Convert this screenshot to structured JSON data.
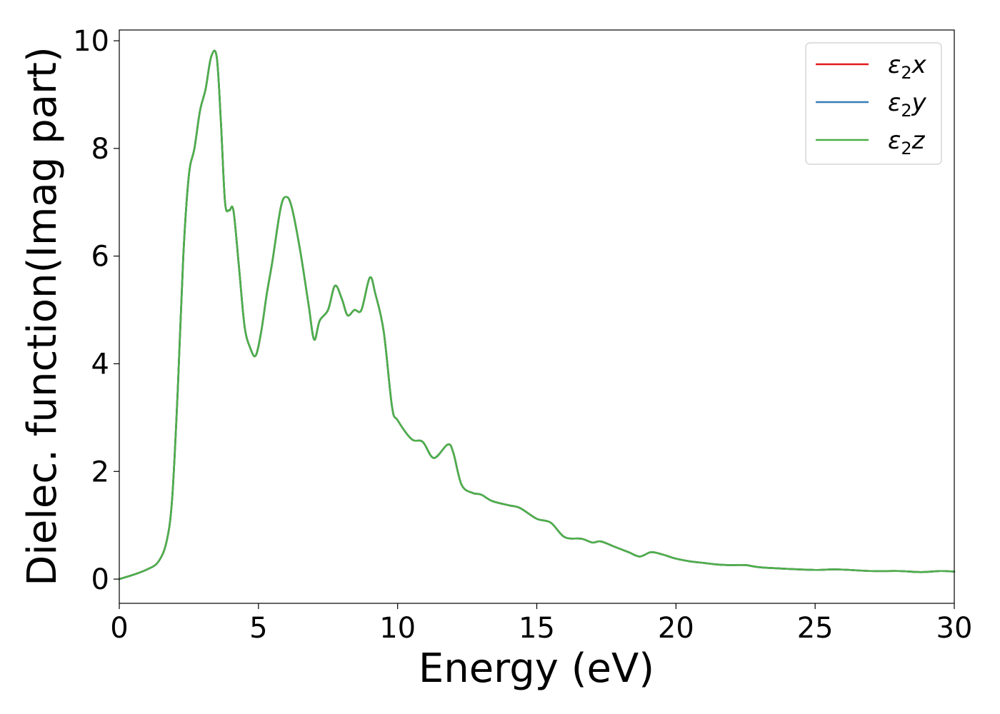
{
  "chart_data": {
    "type": "line",
    "title": "",
    "xlabel": "Energy (eV)",
    "ylabel": "Dielec. function(Imag part)",
    "xlim": [
      0,
      30
    ],
    "ylim": [
      -0.45,
      10.2
    ],
    "xticks": [
      0,
      5,
      10,
      15,
      20,
      25,
      30
    ],
    "yticks": [
      0,
      2,
      4,
      6,
      8,
      10
    ],
    "grid": false,
    "legend_position": "top-right",
    "x": [
      0,
      0.5,
      1.0,
      1.4,
      1.7,
      1.9,
      2.1,
      2.3,
      2.5,
      2.7,
      2.9,
      3.1,
      3.3,
      3.5,
      3.65,
      3.8,
      3.95,
      4.1,
      4.3,
      4.5,
      4.7,
      4.9,
      5.1,
      5.3,
      5.5,
      5.8,
      6.0,
      6.2,
      6.5,
      6.8,
      7.0,
      7.2,
      7.5,
      7.75,
      8.0,
      8.2,
      8.45,
      8.7,
      9.0,
      9.2,
      9.5,
      9.8,
      10.0,
      10.5,
      10.9,
      11.3,
      11.8,
      12.0,
      12.3,
      12.7,
      13.0,
      13.4,
      14.0,
      14.4,
      15.0,
      15.5,
      16.0,
      16.6,
      17.0,
      17.3,
      17.8,
      18.3,
      18.7,
      19.1,
      19.5,
      20.0,
      20.5,
      21.0,
      21.5,
      22.0,
      22.5,
      23.0,
      24.0,
      25.0,
      25.8,
      27.0,
      28.0,
      28.8,
      29.5,
      30.0
    ],
    "series": [
      {
        "name": "x",
        "color": "#e41a1c",
        "values": [
          0.0,
          0.08,
          0.18,
          0.32,
          0.7,
          1.5,
          3.5,
          6.0,
          7.5,
          8.0,
          8.7,
          9.1,
          9.7,
          9.7,
          8.5,
          7.0,
          6.85,
          6.85,
          5.8,
          4.7,
          4.3,
          4.15,
          4.6,
          5.3,
          5.9,
          6.9,
          7.1,
          6.9,
          6.1,
          5.1,
          4.45,
          4.8,
          5.0,
          5.45,
          5.2,
          4.9,
          5.0,
          5.0,
          5.6,
          5.3,
          4.6,
          3.2,
          2.95,
          2.6,
          2.55,
          2.25,
          2.5,
          2.35,
          1.75,
          1.6,
          1.57,
          1.45,
          1.37,
          1.32,
          1.12,
          1.05,
          0.78,
          0.75,
          0.68,
          0.7,
          0.6,
          0.5,
          0.42,
          0.5,
          0.46,
          0.38,
          0.33,
          0.3,
          0.27,
          0.26,
          0.26,
          0.22,
          0.19,
          0.17,
          0.18,
          0.15,
          0.15,
          0.13,
          0.15,
          0.14
        ]
      },
      {
        "name": "y",
        "color": "#377eb8",
        "values": [
          0.0,
          0.08,
          0.18,
          0.32,
          0.7,
          1.5,
          3.5,
          6.0,
          7.5,
          8.0,
          8.7,
          9.1,
          9.7,
          9.7,
          8.5,
          7.0,
          6.85,
          6.85,
          5.8,
          4.7,
          4.3,
          4.15,
          4.6,
          5.3,
          5.9,
          6.9,
          7.1,
          6.9,
          6.1,
          5.1,
          4.45,
          4.8,
          5.0,
          5.45,
          5.2,
          4.9,
          5.0,
          5.0,
          5.6,
          5.3,
          4.6,
          3.2,
          2.95,
          2.6,
          2.55,
          2.25,
          2.5,
          2.35,
          1.75,
          1.6,
          1.57,
          1.45,
          1.37,
          1.32,
          1.12,
          1.05,
          0.78,
          0.75,
          0.68,
          0.7,
          0.6,
          0.5,
          0.42,
          0.5,
          0.46,
          0.38,
          0.33,
          0.3,
          0.27,
          0.26,
          0.26,
          0.22,
          0.19,
          0.17,
          0.18,
          0.15,
          0.15,
          0.13,
          0.15,
          0.14
        ]
      },
      {
        "name": "z",
        "color": "#4daf4a",
        "values": [
          0.0,
          0.08,
          0.18,
          0.32,
          0.7,
          1.5,
          3.5,
          6.0,
          7.5,
          8.0,
          8.7,
          9.1,
          9.7,
          9.7,
          8.5,
          7.0,
          6.85,
          6.85,
          5.8,
          4.7,
          4.3,
          4.15,
          4.6,
          5.3,
          5.9,
          6.9,
          7.1,
          6.9,
          6.1,
          5.1,
          4.45,
          4.8,
          5.0,
          5.45,
          5.2,
          4.9,
          5.0,
          5.0,
          5.6,
          5.3,
          4.6,
          3.2,
          2.95,
          2.6,
          2.55,
          2.25,
          2.5,
          2.35,
          1.75,
          1.6,
          1.57,
          1.45,
          1.37,
          1.32,
          1.12,
          1.05,
          0.78,
          0.75,
          0.68,
          0.7,
          0.6,
          0.5,
          0.42,
          0.5,
          0.46,
          0.38,
          0.33,
          0.3,
          0.27,
          0.26,
          0.26,
          0.22,
          0.19,
          0.17,
          0.18,
          0.15,
          0.15,
          0.13,
          0.15,
          0.14
        ]
      }
    ],
    "legend": {
      "symbol": "ε",
      "subscript": "2"
    }
  }
}
